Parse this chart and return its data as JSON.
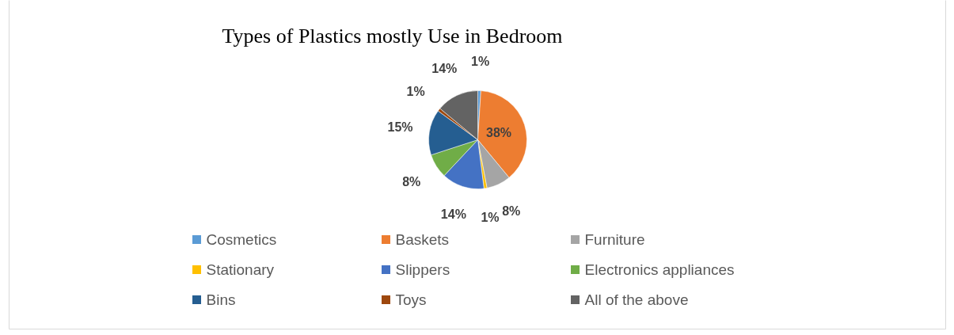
{
  "chart_data": {
    "type": "pie",
    "title": "Types of Plastics mostly Use in Bedroom",
    "categories": [
      "Cosmetics",
      "Baskets",
      "Furniture",
      "Stationary",
      "Slippers",
      "Electronics appliances",
      "Bins",
      "Toys",
      "All of the above"
    ],
    "values": [
      1,
      38,
      8,
      1,
      14,
      8,
      15,
      1,
      14
    ],
    "colors": [
      "#5b9bd5",
      "#ed7d31",
      "#a5a5a5",
      "#ffc000",
      "#4472c4",
      "#70ad47",
      "#255e91",
      "#9e480e",
      "#636363"
    ],
    "value_labels": [
      "1%",
      "38%",
      "8%",
      "1%",
      "14%",
      "8%",
      "15%",
      "1%",
      "14%"
    ],
    "legend": "bottom"
  }
}
